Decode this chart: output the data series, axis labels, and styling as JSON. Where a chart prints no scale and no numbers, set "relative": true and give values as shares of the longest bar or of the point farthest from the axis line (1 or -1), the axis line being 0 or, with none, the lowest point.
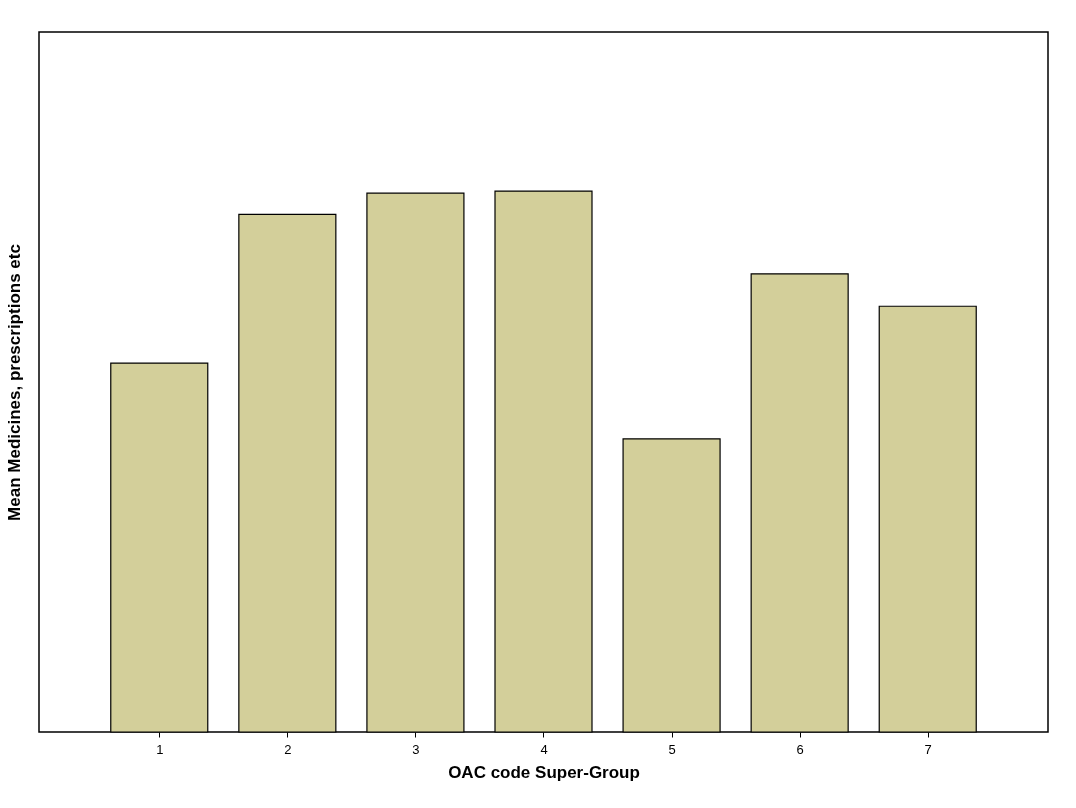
{
  "chart_data": {
    "type": "bar",
    "relative": true,
    "xlabel": "OAC code Super-Group",
    "ylabel": "Mean Medicines, prescriptions etc",
    "categories": [
      "1",
      "2",
      "3",
      "4",
      "5",
      "6",
      "7"
    ],
    "values": [
      0.682,
      0.957,
      0.996,
      1,
      0.542,
      0.847,
      0.787
    ],
    "color": "#d3cf9a",
    "grid": false
  }
}
